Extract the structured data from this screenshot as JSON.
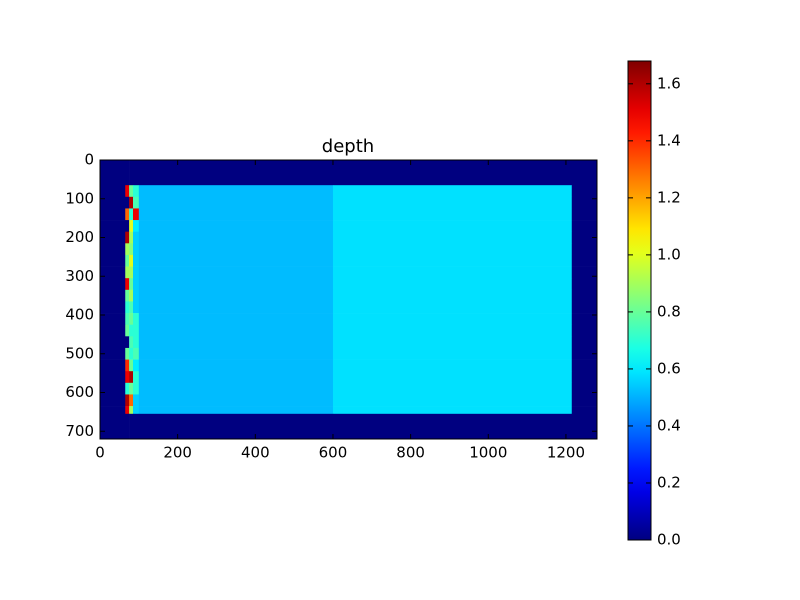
{
  "chart_data": {
    "type": "heatmap",
    "title": "depth",
    "x": [
      0,
      65,
      75,
      85,
      100,
      600,
      1215,
      1280
    ],
    "y": [
      0,
      65,
      95,
      125,
      155,
      185,
      215,
      245,
      275,
      305,
      335,
      365,
      395,
      425,
      455,
      485,
      515,
      545,
      575,
      605,
      635,
      655,
      720
    ],
    "values": [
      [
        0,
        0,
        0,
        0,
        0,
        0,
        0
      ],
      [
        0,
        1.5,
        0.8,
        0.7,
        0.52,
        0.58,
        0
      ],
      [
        0,
        0,
        1.6,
        0.75,
        0.52,
        0.58,
        0
      ],
      [
        0,
        1.3,
        0.7,
        1.5,
        0.52,
        0.58,
        0
      ],
      [
        0,
        0,
        1.0,
        0.6,
        0.52,
        0.58,
        0
      ],
      [
        0,
        1.6,
        0.9,
        0.55,
        0.52,
        0.58,
        0
      ],
      [
        0,
        0.9,
        0.85,
        0.55,
        0.52,
        0.58,
        0
      ],
      [
        0,
        0.8,
        1.0,
        0.55,
        0.52,
        0.58,
        0
      ],
      [
        0,
        0.9,
        0.9,
        0.55,
        0.52,
        0.58,
        0
      ],
      [
        0,
        1.5,
        0.8,
        0.55,
        0.52,
        0.58,
        0
      ],
      [
        0,
        0.8,
        0.9,
        0.55,
        0.52,
        0.58,
        0
      ],
      [
        0,
        0.7,
        0.75,
        0.55,
        0.52,
        0.58,
        0
      ],
      [
        0,
        0.75,
        0.8,
        0.7,
        0.52,
        0.58,
        0
      ],
      [
        0,
        0.8,
        0.7,
        0.7,
        0.52,
        0.58,
        0
      ],
      [
        0,
        0,
        0.75,
        0.7,
        0.52,
        0.58,
        0
      ],
      [
        0,
        0.8,
        0.7,
        0.75,
        0.52,
        0.58,
        0
      ],
      [
        0,
        1.4,
        0.8,
        0.6,
        0.52,
        0.58,
        0
      ],
      [
        0,
        1.5,
        1.6,
        0.7,
        0.52,
        0.58,
        0
      ],
      [
        0,
        0.7,
        0.8,
        0.7,
        0.52,
        0.58,
        0
      ],
      [
        0,
        1.6,
        1.3,
        0.55,
        0.52,
        0.58,
        0
      ],
      [
        0,
        1.5,
        0.9,
        0.55,
        0.52,
        0.58,
        0
      ],
      [
        0,
        0,
        0,
        0,
        0,
        0,
        0
      ]
    ],
    "xlim": [
      0,
      1280
    ],
    "ylim": [
      720,
      0
    ],
    "xticks": [
      0,
      200,
      400,
      600,
      800,
      1000,
      1200
    ],
    "yticks": [
      0,
      100,
      200,
      300,
      400,
      500,
      600,
      700
    ],
    "colormap": "jet",
    "clim": [
      0,
      1.68
    ],
    "cticks": [
      {
        "value": 0,
        "label": "0.0"
      },
      0.2,
      0.4,
      0.6,
      0.8,
      {
        "value": 1,
        "label": "1.0"
      },
      1.2,
      1.4,
      1.6
    ]
  }
}
